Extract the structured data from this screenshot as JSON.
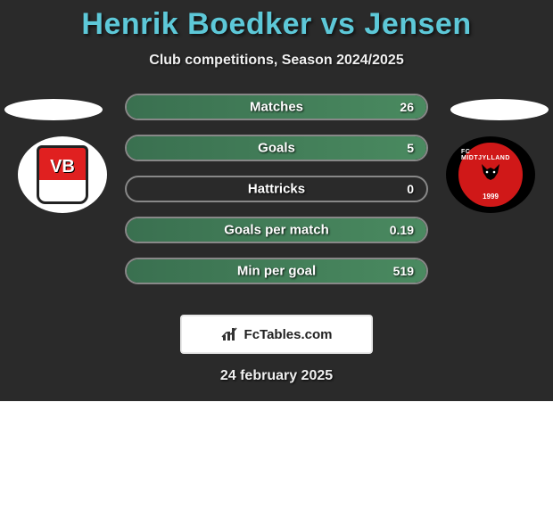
{
  "title": "Henrik Boedker vs Jensen",
  "subtitle": "Club competitions, Season 2024/2025",
  "date": "24 february 2025",
  "watermark_text": "FcTables.com",
  "colors": {
    "background": "#2a2a2a",
    "title": "#5dc8d8",
    "text": "#f0f0f0",
    "row_border": "#888888",
    "fill_gradient_from": "#3a7050",
    "fill_gradient_to": "#4a8a60",
    "watermark_border": "#e8e8e8"
  },
  "left_club": {
    "name": "Vejle BK",
    "short": "VB",
    "primary": "#e02020",
    "secondary": "#ffffff"
  },
  "right_club": {
    "name": "FC Midtjylland",
    "arc": "FC MIDTJYLLAND",
    "year": "1999",
    "primary": "#000000",
    "accent": "#d01818"
  },
  "stats": [
    {
      "label": "Matches",
      "right_value": "26",
      "fill_pct": 100
    },
    {
      "label": "Goals",
      "right_value": "5",
      "fill_pct": 100
    },
    {
      "label": "Hattricks",
      "right_value": "0",
      "fill_pct": 0
    },
    {
      "label": "Goals per match",
      "right_value": "0.19",
      "fill_pct": 100
    },
    {
      "label": "Min per goal",
      "right_value": "519",
      "fill_pct": 100
    }
  ]
}
